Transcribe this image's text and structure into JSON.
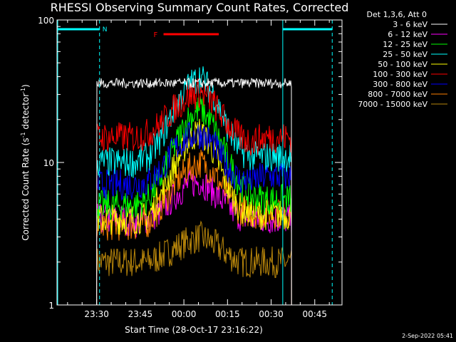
{
  "chart_data": {
    "type": "line",
    "title": "RHESSI Observing Summary Count Rates, Corrected",
    "xlabel": "Start Time (28-Oct-17 23:16:22)",
    "ylabel_main": "Corrected Count Rate (s",
    "ylabel_sup1": "-1",
    "ylabel_mid": " detector",
    "ylabel_sup2": "-1",
    "ylabel_end": ")",
    "yscale": "log",
    "ylim": [
      1,
      100
    ],
    "xlim": [
      "23:16:22",
      "00:54:22"
    ],
    "y_ticks": [
      "1",
      "10",
      "100"
    ],
    "x_ticks": [
      "23:30",
      "23:45",
      "00:00",
      "00:15",
      "00:30",
      "00:45"
    ],
    "legend_title": "Det 1,3,6, Att 0",
    "legend_position": "top-right",
    "series": [
      {
        "name": "3 - 6 keV",
        "color": "#ffffff",
        "start": "23:30:00",
        "end": "00:37:00",
        "values": [
          36,
          36,
          36,
          36,
          36,
          36,
          36,
          36,
          36,
          36,
          36,
          36,
          36,
          36,
          36,
          36
        ]
      },
      {
        "name": "6 - 12 keV",
        "color": "#ff00ff",
        "start": "23:30:00",
        "end": "00:37:00",
        "values": [
          4,
          4,
          4,
          3.8,
          4,
          4.6,
          5.8,
          7,
          7.4,
          6.2,
          5,
          4.2,
          4,
          4,
          4,
          4
        ]
      },
      {
        "name": "12 - 25 keV",
        "color": "#00ff00",
        "start": "23:30:00",
        "end": "00:37:00",
        "values": [
          5,
          5,
          5,
          5,
          5.6,
          8,
          13,
          20,
          24,
          18,
          11,
          7,
          5.8,
          5.5,
          5.5,
          5.5
        ]
      },
      {
        "name": "25 - 50 keV",
        "color": "#00ffff",
        "start": "23:30:00",
        "end": "00:37:00",
        "values": [
          10,
          10,
          10,
          10,
          11,
          15,
          24,
          34,
          40,
          30,
          18,
          12,
          11,
          11,
          11,
          11
        ]
      },
      {
        "name": "50 - 100 keV",
        "color": "#ffff00",
        "start": "23:30:00",
        "end": "00:37:00",
        "values": [
          4,
          4,
          4,
          4,
          4.2,
          6,
          9.5,
          14,
          17,
          12,
          7,
          4.8,
          4.4,
          4.3,
          4.3,
          4.3
        ]
      },
      {
        "name": "100 - 300 keV",
        "color": "#ff0000",
        "start": "23:30:00",
        "end": "00:37:00",
        "values": [
          15,
          15,
          15,
          15,
          16,
          19,
          24,
          29,
          31,
          26,
          19,
          15,
          14,
          15,
          15,
          15
        ]
      },
      {
        "name": "300 - 800 keV",
        "color": "#0000ff",
        "start": "23:30:00",
        "end": "00:37:00",
        "values": [
          7,
          7,
          7,
          7,
          7.3,
          9,
          12.5,
          15,
          16,
          13.5,
          9.5,
          7.5,
          7.5,
          8,
          8,
          8
        ]
      },
      {
        "name": "800 - 7000 keV",
        "color": "#ff8000",
        "start": "23:30:00",
        "end": "00:37:00",
        "values": [
          3.6,
          3.6,
          3.6,
          3.6,
          3.8,
          5,
          7,
          9,
          10,
          8.5,
          6,
          4.6,
          4.4,
          4.4,
          4.4,
          4.4
        ]
      },
      {
        "name": "7000 - 15000 keV",
        "color": "#b8860b",
        "start": "23:30:00",
        "end": "00:37:00",
        "values": [
          2,
          2,
          2,
          2,
          2,
          2.2,
          2.5,
          2.8,
          3,
          2.7,
          2.3,
          2,
          2,
          2,
          2,
          2
        ]
      }
    ],
    "annotations": {
      "night_label": "N",
      "flare_label": "F",
      "night_color": "#00ffff",
      "flare_color": "#ff0000",
      "night_bars": [
        [
          "23:16:22",
          "23:31:00"
        ],
        [
          "00:34:00",
          "00:51:00"
        ]
      ],
      "flare_bar": [
        "23:53:00",
        "00:12:00"
      ],
      "vlines_solid": [
        "23:16:22",
        "00:34:00"
      ],
      "vlines_dashed": [
        "23:31:00",
        "00:51:00"
      ]
    },
    "grid": false
  },
  "footer": {
    "date_stamp": "2-Sep-2022 05:41"
  }
}
